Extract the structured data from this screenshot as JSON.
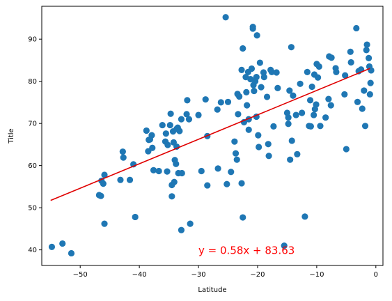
{
  "chart_data": {
    "type": "scatter",
    "title": "",
    "xlabel": "Latitude",
    "ylabel": "Title",
    "xlim": [
      -56.5,
      1.2
    ],
    "ylim": [
      36.3,
      97.8
    ],
    "xticks": [
      -50,
      -40,
      -30,
      -20,
      -10,
      0
    ],
    "yticks": [
      40,
      50,
      60,
      70,
      80,
      90
    ],
    "grid": false,
    "legend": "none",
    "point_color": "#1f77b4",
    "line_color": "#e00000",
    "annotation": {
      "text": "y = 0.58x + 83.63",
      "x": -30,
      "y": 40,
      "color": "#ff0000"
    },
    "regression": {
      "slope": 0.58,
      "intercept": 83.63,
      "x": [
        -55,
        -1
      ]
    },
    "points": [
      [
        -54.8,
        40.7
      ],
      [
        -53.0,
        41.5
      ],
      [
        -51.5,
        39.2
      ],
      [
        -46.8,
        53.0
      ],
      [
        -46.5,
        52.8
      ],
      [
        -46.4,
        56.4
      ],
      [
        -46.1,
        55.7
      ],
      [
        -45.9,
        57.8
      ],
      [
        -45.9,
        46.2
      ],
      [
        -43.2,
        56.6
      ],
      [
        -42.8,
        63.3
      ],
      [
        -42.7,
        61.9
      ],
      [
        -41.6,
        56.6
      ],
      [
        -41.0,
        60.3
      ],
      [
        -40.7,
        47.8
      ],
      [
        -38.8,
        68.3
      ],
      [
        -38.5,
        63.4
      ],
      [
        -38.4,
        66.1
      ],
      [
        -38.2,
        66.2
      ],
      [
        -37.9,
        67.2
      ],
      [
        -37.8,
        64.2
      ],
      [
        -37.6,
        58.9
      ],
      [
        -36.7,
        58.7
      ],
      [
        -36.1,
        69.6
      ],
      [
        -35.6,
        65.7
      ],
      [
        -35.5,
        67.6
      ],
      [
        -35.3,
        58.6
      ],
      [
        -35.2,
        64.9
      ],
      [
        -34.8,
        69.6
      ],
      [
        -34.7,
        72.3
      ],
      [
        -34.5,
        55.4
      ],
      [
        -34.5,
        52.7
      ],
      [
        -34.3,
        68.1
      ],
      [
        -34.2,
        65.5
      ],
      [
        -34.1,
        56.1
      ],
      [
        -34.0,
        61.3
      ],
      [
        -33.8,
        60.4
      ],
      [
        -33.7,
        64.5
      ],
      [
        -33.7,
        68.7
      ],
      [
        -33.5,
        69.0
      ],
      [
        -33.4,
        58.2
      ],
      [
        -33.2,
        68.2
      ],
      [
        -32.9,
        71.0
      ],
      [
        -32.8,
        58.2
      ],
      [
        -32.9,
        44.7
      ],
      [
        -32.0,
        72.2
      ],
      [
        -31.9,
        75.5
      ],
      [
        -31.6,
        71.0
      ],
      [
        -31.4,
        46.2
      ],
      [
        -30.0,
        72.0
      ],
      [
        -29.5,
        58.7
      ],
      [
        -28.8,
        75.7
      ],
      [
        -28.5,
        67.0
      ],
      [
        -28.5,
        55.3
      ],
      [
        -26.8,
        73.3
      ],
      [
        -26.7,
        59.3
      ],
      [
        -26.2,
        75.0
      ],
      [
        -25.4,
        95.2
      ],
      [
        -25.2,
        55.6
      ],
      [
        -25.0,
        75.1
      ],
      [
        -24.5,
        58.5
      ],
      [
        -23.9,
        65.7
      ],
      [
        -23.7,
        62.9
      ],
      [
        -23.3,
        72.2
      ],
      [
        -23.5,
        61.4
      ],
      [
        -23.4,
        77.0
      ],
      [
        -23.1,
        76.4
      ],
      [
        -22.7,
        82.7
      ],
      [
        -22.7,
        55.8
      ],
      [
        -22.5,
        47.7
      ],
      [
        -22.5,
        87.8
      ],
      [
        -22.3,
        70.3
      ],
      [
        -22.0,
        81.0
      ],
      [
        -21.9,
        77.4
      ],
      [
        -21.8,
        74.3
      ],
      [
        -21.6,
        82.2
      ],
      [
        -21.5,
        71.0
      ],
      [
        -21.5,
        68.5
      ],
      [
        -21.2,
        80.5
      ],
      [
        -21.0,
        83.0
      ],
      [
        -20.8,
        92.9
      ],
      [
        -20.8,
        92.5
      ],
      [
        -20.7,
        79.1
      ],
      [
        -20.6,
        77.7
      ],
      [
        -20.4,
        80.0
      ],
      [
        -20.2,
        81.0
      ],
      [
        -20.2,
        71.6
      ],
      [
        -20.1,
        90.9
      ],
      [
        -19.9,
        67.2
      ],
      [
        -19.8,
        64.4
      ],
      [
        -19.6,
        84.4
      ],
      [
        -19.4,
        78.6
      ],
      [
        -19.0,
        82.1
      ],
      [
        -18.9,
        81.0
      ],
      [
        -18.4,
        76.3
      ],
      [
        -18.2,
        65.1
      ],
      [
        -18.1,
        62.3
      ],
      [
        -17.8,
        82.7
      ],
      [
        -17.6,
        82.2
      ],
      [
        -17.3,
        69.3
      ],
      [
        -16.8,
        82.1
      ],
      [
        -16.6,
        78.4
      ],
      [
        -15.5,
        41.0
      ],
      [
        -15.0,
        72.5
      ],
      [
        -14.8,
        69.9
      ],
      [
        -14.8,
        71.4
      ],
      [
        -14.6,
        77.8
      ],
      [
        -14.5,
        61.4
      ],
      [
        -14.3,
        88.1
      ],
      [
        -14.2,
        65.9
      ],
      [
        -14.0,
        76.6
      ],
      [
        -13.5,
        72.0
      ],
      [
        -13.3,
        62.7
      ],
      [
        -12.8,
        79.4
      ],
      [
        -12.5,
        72.5
      ],
      [
        -12.0,
        47.9
      ],
      [
        -11.6,
        82.2
      ],
      [
        -11.3,
        69.4
      ],
      [
        -11.1,
        75.5
      ],
      [
        -11.0,
        69.3
      ],
      [
        -10.8,
        78.7
      ],
      [
        -10.5,
        72.0
      ],
      [
        -10.4,
        81.6
      ],
      [
        -10.3,
        73.4
      ],
      [
        -10.1,
        74.5
      ],
      [
        -10.0,
        84.1
      ],
      [
        -9.8,
        80.9
      ],
      [
        -9.6,
        83.5
      ],
      [
        -9.4,
        69.4
      ],
      [
        -8.5,
        71.4
      ],
      [
        -8.0,
        75.8
      ],
      [
        -7.9,
        85.9
      ],
      [
        -7.6,
        74.3
      ],
      [
        -7.5,
        85.6
      ],
      [
        -6.8,
        83.1
      ],
      [
        -6.7,
        82.2
      ],
      [
        -5.3,
        76.9
      ],
      [
        -5.2,
        81.4
      ],
      [
        -5.0,
        63.9
      ],
      [
        -4.3,
        87.0
      ],
      [
        -4.2,
        84.5
      ],
      [
        -3.3,
        92.6
      ],
      [
        -3.1,
        75.1
      ],
      [
        -2.9,
        82.4
      ],
      [
        -2.5,
        82.8
      ],
      [
        -2.3,
        73.5
      ],
      [
        -2.0,
        77.8
      ],
      [
        -1.8,
        69.4
      ],
      [
        -1.6,
        87.4
      ],
      [
        -1.5,
        88.7
      ],
      [
        -1.2,
        85.5
      ],
      [
        -1.1,
        83.5
      ],
      [
        -1.0,
        76.9
      ],
      [
        -0.9,
        79.6
      ],
      [
        -0.8,
        82.6
      ]
    ]
  }
}
